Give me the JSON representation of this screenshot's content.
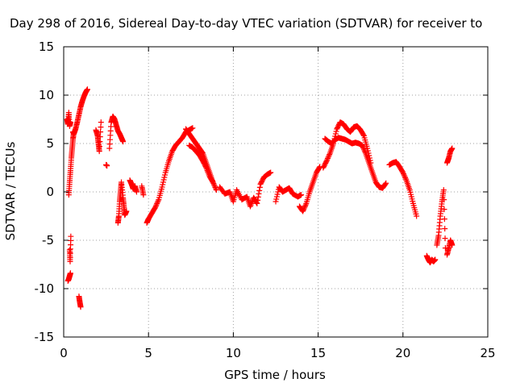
{
  "chart_data": {
    "type": "scatter",
    "title": "Day 298 of 2016, Sidereal Day-to-day VTEC variation (SDTVAR) for receiver to",
    "xlabel": "GPS time / hours",
    "ylabel": "SDTVAR / TECUs",
    "xlim": [
      0,
      25
    ],
    "ylim": [
      -15,
      15
    ],
    "x_ticks": [
      0,
      5,
      10,
      15,
      20,
      25
    ],
    "y_ticks": [
      -15,
      -10,
      -5,
      0,
      5,
      10,
      15
    ],
    "grid": true,
    "marker": "+",
    "color": "#ff0000",
    "series": [
      {
        "name": "SDTVAR",
        "segments": [
          {
            "x": [
              0.2,
              0.25,
              0.3,
              0.35,
              0.4
            ],
            "y": [
              7.5,
              7.0,
              8.2,
              6.8,
              7.2
            ]
          },
          {
            "x": [
              0.25,
              0.3,
              0.35,
              0.4
            ],
            "y": [
              -9.2,
              -9.0,
              -8.7,
              -8.4
            ]
          },
          {
            "x": [
              0.35,
              0.38,
              0.42
            ],
            "y": [
              -6.0,
              -7.2,
              -4.6
            ]
          },
          {
            "x": [
              0.3,
              0.35,
              0.4,
              0.45,
              0.5,
              0.55,
              0.6
            ],
            "y": [
              -0.3,
              1.0,
              2.2,
              3.5,
              4.5,
              5.5,
              6.2
            ]
          },
          {
            "x": [
              0.55,
              0.6,
              0.7,
              0.8,
              0.9,
              1.0,
              1.1,
              1.2,
              1.3,
              1.4
            ],
            "y": [
              6.2,
              6.0,
              6.5,
              7.2,
              8.0,
              8.8,
              9.4,
              9.9,
              10.3,
              10.6
            ]
          },
          {
            "x": [
              0.9,
              0.95,
              1.0
            ],
            "y": [
              -10.8,
              -11.4,
              -11.9
            ]
          },
          {
            "x": [
              1.9,
              2.0,
              2.05,
              2.1,
              2.2
            ],
            "y": [
              6.4,
              5.8,
              5.0,
              4.2,
              7.2
            ]
          },
          {
            "x": [
              2.5,
              2.55
            ],
            "y": [
              2.8,
              2.7
            ]
          },
          {
            "x": [
              2.7,
              2.8,
              2.9,
              3.0,
              3.1,
              3.2,
              3.3,
              3.4,
              3.5
            ],
            "y": [
              4.5,
              7.2,
              7.8,
              7.5,
              6.9,
              6.3,
              6.0,
              5.6,
              5.2
            ]
          },
          {
            "x": [
              3.2,
              3.25,
              3.3,
              3.35,
              3.4,
              3.5,
              3.55,
              3.6,
              3.7
            ],
            "y": [
              -3.2,
              -2.5,
              -1.0,
              0.0,
              1.0,
              -0.6,
              -1.5,
              -2.4,
              -2.0
            ]
          },
          {
            "x": [
              3.9,
              4.0,
              4.1,
              4.2,
              4.3
            ],
            "y": [
              1.2,
              0.8,
              0.3,
              0.6,
              0.0
            ]
          },
          {
            "x": [
              4.6,
              4.7
            ],
            "y": [
              0.6,
              -0.3
            ]
          },
          {
            "x": [
              4.9,
              5.0,
              5.2,
              5.4,
              5.6,
              5.8,
              6.0,
              6.2,
              6.4,
              6.6,
              6.8,
              7.0,
              7.2,
              7.4,
              7.6
            ],
            "y": [
              -3.2,
              -2.8,
              -2.2,
              -1.6,
              -0.8,
              0.5,
              2.0,
              3.2,
              4.2,
              4.8,
              5.2,
              5.6,
              6.2,
              6.4,
              6.6
            ]
          },
          {
            "x": [
              7.2,
              7.4,
              7.6,
              7.8,
              8.0,
              8.2,
              8.4,
              8.6,
              8.8
            ],
            "y": [
              6.5,
              6.0,
              5.5,
              5.0,
              4.5,
              4.0,
              3.0,
              2.0,
              1.0
            ]
          },
          {
            "x": [
              7.4,
              7.6,
              7.8,
              8.0,
              8.2,
              8.4,
              8.6,
              8.8,
              9.0
            ],
            "y": [
              4.8,
              4.6,
              4.2,
              3.8,
              3.2,
              2.5,
              1.6,
              1.0,
              0.2
            ]
          },
          {
            "x": [
              9.2,
              9.5,
              9.8,
              10.0,
              10.2,
              10.5,
              10.8,
              11.0,
              11.2,
              11.4,
              11.6,
              11.8,
              12.0,
              12.2
            ],
            "y": [
              0.5,
              -0.2,
              0.0,
              -1.0,
              0.2,
              -0.8,
              -0.5,
              -1.5,
              -0.6,
              -1.2,
              0.8,
              1.5,
              1.8,
              2.0
            ]
          },
          {
            "x": [
              12.5,
              12.7,
              12.9,
              13.1,
              13.3,
              13.5,
              13.8,
              14.0
            ],
            "y": [
              -1.0,
              0.5,
              0.0,
              0.2,
              0.4,
              -0.2,
              -0.5,
              -0.3
            ]
          },
          {
            "x": [
              13.9,
              14.1,
              14.3,
              14.5,
              14.7,
              14.9,
              15.1
            ],
            "y": [
              -1.5,
              -2.0,
              -1.2,
              0.0,
              1.0,
              2.0,
              2.6
            ]
          },
          {
            "x": [
              15.3,
              15.5,
              15.7,
              15.9,
              16.1,
              16.3,
              16.5,
              16.7,
              16.9,
              17.1,
              17.3,
              17.5,
              17.7,
              17.9,
              18.1
            ],
            "y": [
              2.5,
              3.2,
              4.0,
              5.0,
              6.5,
              7.2,
              7.0,
              6.5,
              6.2,
              6.7,
              6.8,
              6.4,
              5.8,
              4.5,
              3.0
            ]
          },
          {
            "x": [
              15.4,
              15.6,
              15.8,
              16.0,
              16.2,
              16.4,
              16.6,
              16.8,
              17.0,
              17.2,
              17.4,
              17.6,
              17.8,
              18.0,
              18.2,
              18.4,
              18.6,
              18.8,
              19.0
            ],
            "y": [
              5.5,
              5.2,
              5.0,
              5.4,
              5.6,
              5.5,
              5.4,
              5.2,
              5.0,
              5.1,
              5.0,
              4.8,
              4.0,
              3.0,
              2.0,
              1.0,
              0.5,
              0.4,
              0.9
            ]
          },
          {
            "x": [
              19.2,
              19.4,
              19.6,
              19.8,
              20.0,
              20.2,
              20.4,
              20.6,
              20.8
            ],
            "y": [
              2.8,
              3.0,
              3.1,
              2.6,
              2.0,
              1.2,
              0.2,
              -1.2,
              -2.5
            ]
          },
          {
            "x": [
              21.4,
              21.5,
              21.6,
              21.7,
              21.8,
              21.9
            ],
            "y": [
              -6.6,
              -7.0,
              -7.3,
              -7.0,
              -7.2,
              -7.0
            ]
          },
          {
            "x": [
              22.0,
              22.1,
              22.2,
              22.3,
              22.4,
              22.5
            ],
            "y": [
              -5.5,
              -4.5,
              -2.5,
              -1.0,
              0.2,
              -5.8
            ]
          },
          {
            "x": [
              22.6,
              22.7,
              22.8,
              22.9
            ],
            "y": [
              -6.5,
              -5.8,
              -5.0,
              -5.5
            ]
          },
          {
            "x": [
              22.6,
              22.7,
              22.8,
              22.9
            ],
            "y": [
              3.0,
              3.5,
              4.2,
              4.5
            ]
          }
        ]
      }
    ]
  }
}
